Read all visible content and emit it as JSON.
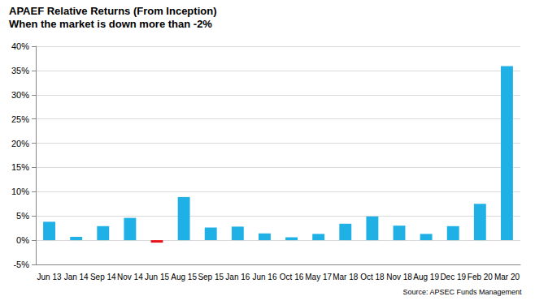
{
  "chart_data": {
    "type": "bar",
    "title": "APAEF Relative Returns (From Inception)",
    "subtitle": "When the market is down more than -2%",
    "annotations": [
      "Source: APSEC Funds Management"
    ],
    "categories": [
      "Jun 13",
      "Jan 14",
      "Sep 14",
      "Nov 14",
      "Jun 15",
      "Aug 15",
      "Sep 15",
      "Jan 16",
      "Jun 16",
      "Oct 16",
      "May 17",
      "Mar 18",
      "Oct 18",
      "Nov 18",
      "Aug 19",
      "Dec 19",
      "Feb 20",
      "Mar 20"
    ],
    "values": [
      3.8,
      0.7,
      2.9,
      4.6,
      -0.5,
      8.9,
      2.6,
      2.8,
      1.4,
      0.6,
      1.3,
      3.4,
      4.9,
      3.0,
      1.3,
      2.9,
      7.5,
      35.9
    ],
    "colors": [
      "#1fb1e6",
      "#1fb1e6",
      "#1fb1e6",
      "#1fb1e6",
      "#e8111b",
      "#1fb1e6",
      "#1fb1e6",
      "#1fb1e6",
      "#1fb1e6",
      "#1fb1e6",
      "#1fb1e6",
      "#1fb1e6",
      "#1fb1e6",
      "#1fb1e6",
      "#1fb1e6",
      "#1fb1e6",
      "#1fb1e6",
      "#1fb1e6"
    ],
    "ylim": [
      -5,
      40
    ],
    "yticks": [
      {
        "value": -5,
        "label": "-5%"
      },
      {
        "value": 0,
        "label": "0%"
      },
      {
        "value": 5,
        "label": "5%"
      },
      {
        "value": 10,
        "label": "10%"
      },
      {
        "value": 15,
        "label": "15%"
      },
      {
        "value": 20,
        "label": "20%"
      },
      {
        "value": 25,
        "label": "25%"
      },
      {
        "value": 30,
        "label": "30%"
      },
      {
        "value": 35,
        "label": "35%"
      },
      {
        "value": 40,
        "label": "40%"
      }
    ],
    "grid": true
  }
}
